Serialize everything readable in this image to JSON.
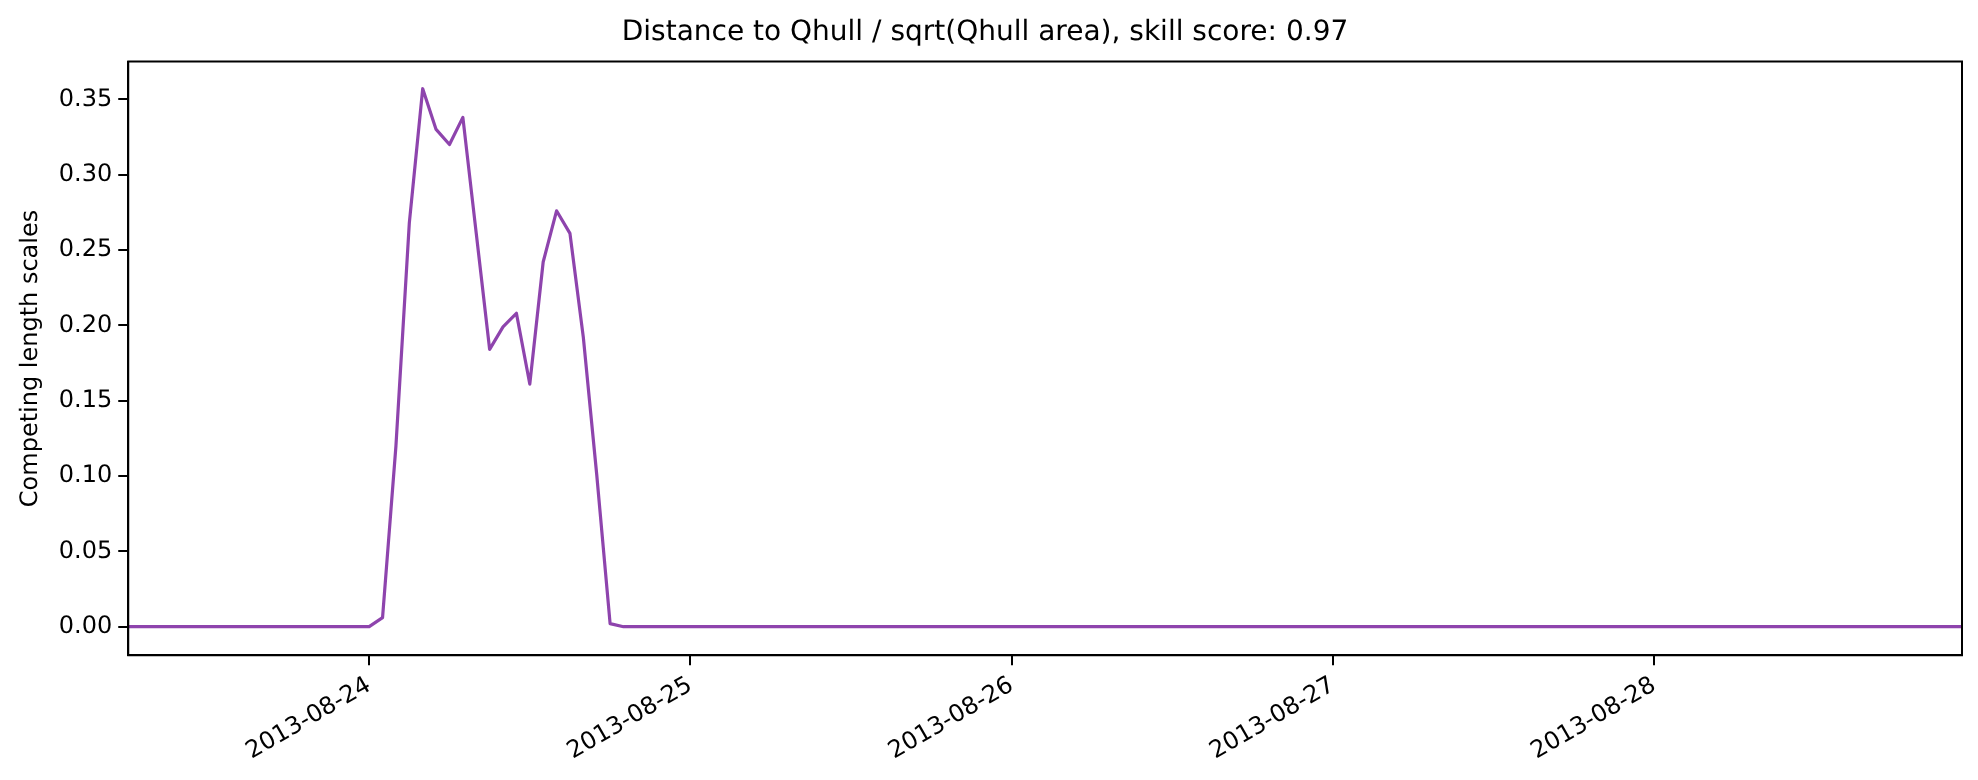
{
  "chart_data": {
    "type": "line",
    "title": "Distance to Qhull / sqrt(Qhull area), skill score: 0.97",
    "ylabel": "Competing length scales",
    "x": [
      "2013-08-23T06:00",
      "2013-08-24T00:00",
      "2013-08-24T01:00",
      "2013-08-24T02:00",
      "2013-08-24T03:00",
      "2013-08-24T04:00",
      "2013-08-24T05:00",
      "2013-08-24T06:00",
      "2013-08-24T07:00",
      "2013-08-24T08:00",
      "2013-08-24T09:00",
      "2013-08-24T10:00",
      "2013-08-24T11:00",
      "2013-08-24T12:00",
      "2013-08-24T13:00",
      "2013-08-24T14:00",
      "2013-08-24T15:00",
      "2013-08-24T16:00",
      "2013-08-24T17:00",
      "2013-08-24T18:00",
      "2013-08-24T19:00",
      "2013-08-28T23:00"
    ],
    "series": [
      {
        "color": "#8e44ad",
        "values": [
          0,
          0,
          0.006,
          0.12,
          0.268,
          0.357,
          0.33,
          0.32,
          0.338,
          0.261,
          0.184,
          0.199,
          0.208,
          0.161,
          0.242,
          0.276,
          0.261,
          0.192,
          0.101,
          0.002,
          0,
          0
        ]
      }
    ],
    "xlim": [
      "2013-08-23T06:00",
      "2013-08-28T23:00"
    ],
    "xticks": [
      "2013-08-24",
      "2013-08-25",
      "2013-08-26",
      "2013-08-27",
      "2013-08-28"
    ],
    "ylim": [
      -0.019,
      0.375
    ],
    "yticks": [
      {
        "value": 0,
        "label": "0.00"
      },
      {
        "value": 0.05,
        "label": "0.05"
      },
      {
        "value": 0.1,
        "label": "0.10"
      },
      {
        "value": 0.15,
        "label": "0.15"
      },
      {
        "value": 0.2,
        "label": "0.20"
      },
      {
        "value": 0.25,
        "label": "0.25"
      },
      {
        "value": 0.3,
        "label": "0.30"
      },
      {
        "value": 0.35,
        "label": "0.35"
      }
    ],
    "grid": false,
    "legend": false,
    "line_style": "solid",
    "marker": "none"
  }
}
